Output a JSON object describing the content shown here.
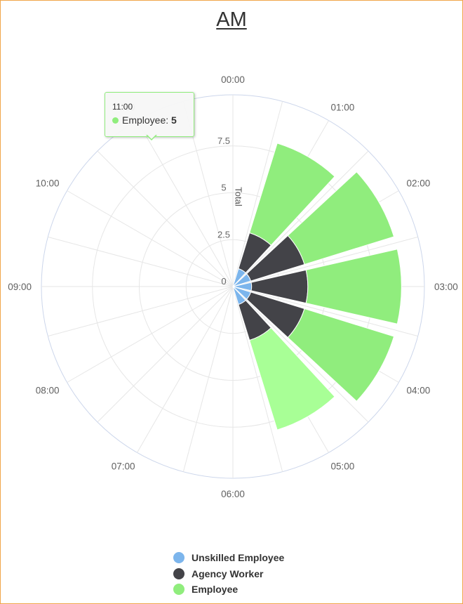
{
  "title": "AM",
  "chart_data": {
    "type": "polar-stacked-column",
    "title": "AM",
    "xlabel": "",
    "ylabel": "Total",
    "categories": [
      "00:00",
      "01:00",
      "02:00",
      "03:00",
      "04:00",
      "05:00",
      "06:00",
      "07:00",
      "08:00",
      "09:00",
      "10:00",
      "11:00"
    ],
    "ring_labels": [
      "0",
      "2.5",
      "5",
      "7.5"
    ],
    "ylim": [
      0,
      10.5
    ],
    "series": [
      {
        "name": "Unskilled Employee",
        "color": "#7cb5ec",
        "values": [
          0,
          0,
          0,
          0,
          0,
          0,
          0,
          1,
          1,
          1,
          1,
          1
        ]
      },
      {
        "name": "Agency Worker",
        "color": "#434348",
        "values": [
          0,
          0,
          0,
          0,
          0,
          0,
          0,
          2,
          3,
          3,
          3,
          2
        ]
      },
      {
        "name": "Employee",
        "color": "#90ed7d",
        "values": [
          0,
          0,
          0,
          0,
          0,
          0,
          0,
          5,
          5,
          5,
          5,
          5
        ]
      }
    ],
    "highlighted_point": {
      "series": "Employee",
      "category": "11:00",
      "color": "#a8ff96"
    },
    "legend": "bottom-center",
    "grid": true
  },
  "tooltip": {
    "time": "11:00",
    "series_name": "Employee",
    "value": "5"
  }
}
